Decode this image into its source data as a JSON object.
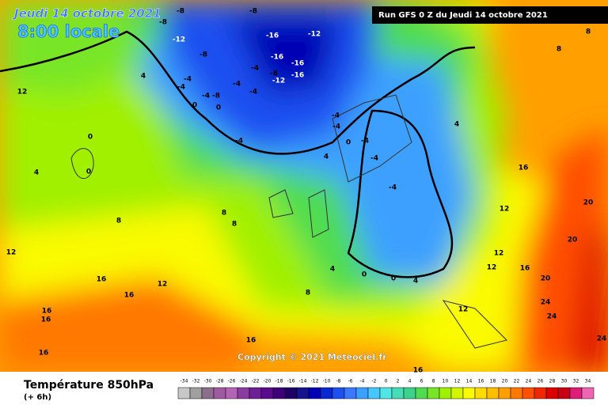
{
  "header": {
    "date": "Jeudi 14 octobre 2021",
    "time": "8:00 locale",
    "run": "Run GFS 0 Z du Jeudi 14 octobre 2021"
  },
  "copyright": "Copyright © 2021 Meteociel.fr",
  "footer": {
    "title": "Température 850hPa",
    "step": "(+ 6h)"
  },
  "legend": {
    "ticks": [
      -34,
      -32,
      -30,
      -28,
      -26,
      -24,
      -22,
      -20,
      -18,
      -16,
      -14,
      -12,
      -10,
      -8,
      -6,
      -4,
      -2,
      0,
      2,
      4,
      6,
      8,
      10,
      12,
      14,
      16,
      18,
      20,
      22,
      24,
      26,
      28,
      30,
      32,
      34
    ],
    "colors": [
      "#c8c8c8",
      "#a0a0a0",
      "#8c6e8c",
      "#a05aa0",
      "#b464b4",
      "#8c3ca0",
      "#6e1e96",
      "#5a0a8c",
      "#3c0078",
      "#1e0064",
      "#14148c",
      "#0000b4",
      "#0a28d2",
      "#1e50f0",
      "#3c78ff",
      "#3ca0ff",
      "#46c8ff",
      "#50e6e6",
      "#46dcb4",
      "#3cd28c",
      "#50dc50",
      "#78e628",
      "#a0f000",
      "#d2f500",
      "#fafa00",
      "#ffdc00",
      "#ffbe00",
      "#ffa000",
      "#ff7800",
      "#ff5000",
      "#f02800",
      "#dc0000",
      "#c80014",
      "#dc1e78",
      "#f064b4"
    ]
  },
  "contour_labels": [
    -8,
    -8,
    -8,
    -12,
    -16,
    -12,
    -8,
    -16,
    -12,
    -16,
    -16,
    -8,
    -4,
    -4,
    -4,
    -4,
    -4,
    -4,
    -8,
    0,
    0,
    -4,
    -4,
    -4,
    0,
    4,
    4,
    -4,
    4,
    12,
    0,
    0,
    4,
    8,
    8,
    8,
    12,
    12,
    16,
    20,
    20,
    12,
    12,
    16,
    20,
    24,
    24,
    24,
    16,
    12,
    16,
    16,
    16,
    16,
    16,
    16,
    12,
    8,
    4,
    0,
    0,
    4,
    8,
    8,
    -4,
    -4
  ]
}
